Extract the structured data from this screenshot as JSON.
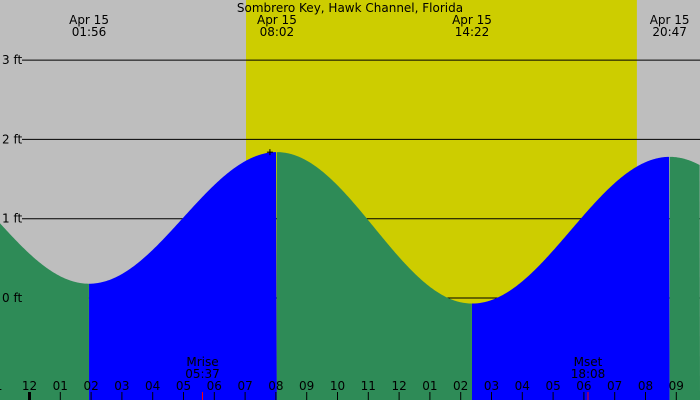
{
  "chart_data": {
    "type": "area",
    "title": "Sombrero Key, Hawk Channel, Florida",
    "ylim": [
      -0.3,
      3.4
    ],
    "y_ticks": [
      {
        "value": 3,
        "label": "3 ft"
      },
      {
        "value": 2,
        "label": "2 ft"
      },
      {
        "value": 1,
        "label": "1 ft"
      },
      {
        "value": 0,
        "label": "0 ft"
      }
    ],
    "x_range_hours": [
      -0.95,
      21.75
    ],
    "x_tick_labels": [
      "1",
      "12",
      "01",
      "02",
      "03",
      "04",
      "05",
      "06",
      "07",
      "08",
      "09",
      "10",
      "11",
      "12",
      "01",
      "02",
      "03",
      "04",
      "05",
      "06",
      "07",
      "08",
      "09"
    ],
    "x_tick_hours": [
      -1,
      0,
      1,
      2,
      3,
      4,
      5,
      6,
      7,
      8,
      9,
      10,
      11,
      12,
      13,
      14,
      15,
      16,
      17,
      18,
      19,
      20,
      21
    ],
    "daylight": {
      "start_hour": 7.03,
      "end_hour": 19.72
    },
    "extremes": [
      {
        "date": "Apr 15",
        "time": "01:56",
        "hour": 1.933,
        "height_ft": 0.18,
        "kind": "low"
      },
      {
        "date": "Apr 15",
        "time": "08:02",
        "hour": 8.033,
        "height_ft": 1.84,
        "kind": "high"
      },
      {
        "date": "Apr 15",
        "time": "14:22",
        "hour": 14.367,
        "height_ft": -0.07,
        "kind": "low"
      },
      {
        "date": "Apr 15",
        "time": "20:47",
        "hour": 20.783,
        "height_ft": 1.78,
        "kind": "high"
      }
    ],
    "moon_events": [
      {
        "label": "Mrise",
        "time": "05:37",
        "hour": 5.617
      },
      {
        "label": "Mset",
        "time": "18:08",
        "hour": 18.133
      }
    ],
    "colors": {
      "night": "#bebebe",
      "day": "#cdcd00",
      "falling": "#2e8b57",
      "rising": "#0000ff",
      "moon_tick": "#ff0000"
    }
  }
}
